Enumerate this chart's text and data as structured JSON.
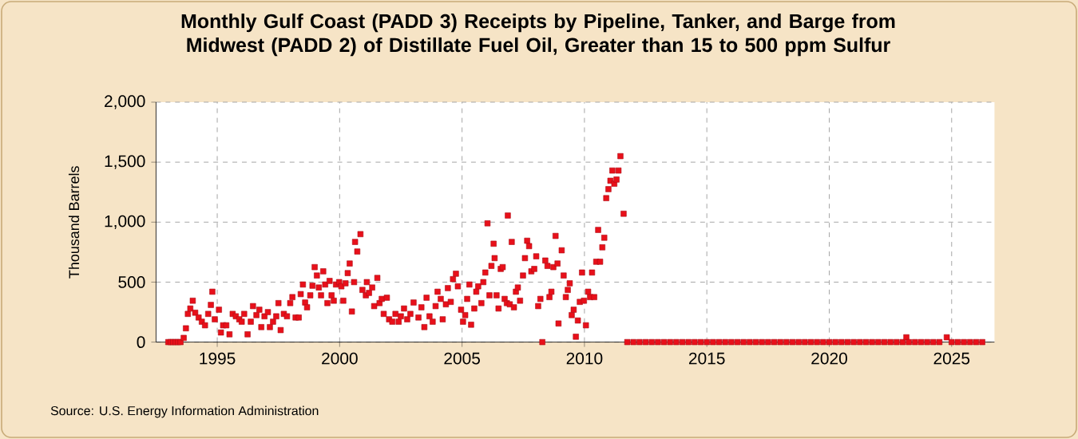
{
  "chart_data": {
    "type": "scatter",
    "title": "Monthly Gulf Coast (PADD 3) Receipts by Pipeline, Tanker, and Barge from Midwest (PADD 2) of Distillate Fuel Oil, Greater than 15 to 500 ppm Sulfur",
    "ylabel": "Thousand Barrels",
    "annotations": [
      "Source: U.S. Energy Information Administration"
    ],
    "xlim": [
      1992.5,
      2026.75
    ],
    "ylim": [
      0,
      2000
    ],
    "xticks": [
      1995,
      2000,
      2005,
      2010,
      2015,
      2020,
      2025
    ],
    "yticks": [
      0,
      500,
      {
        "value": 1000,
        "label": "1,000"
      },
      {
        "value": 1500,
        "label": "1,500"
      },
      {
        "value": 2000,
        "label": "2,000"
      }
    ],
    "grid": true,
    "marker": "square",
    "series": [
      {
        "color": "#e8101a",
        "x": [
          1993.0,
          1993.1,
          1993.2,
          1993.3,
          1993.4,
          1993.5,
          1993.63,
          1993.72,
          1993.8,
          1993.9,
          1994.0,
          1994.1,
          1994.24,
          1994.37,
          1994.5,
          1994.63,
          1994.74,
          1994.8,
          1994.9,
          1995.07,
          1995.15,
          1995.24,
          1995.37,
          1995.5,
          1995.63,
          1995.76,
          1995.9,
          1996.0,
          1996.1,
          1996.24,
          1996.37,
          1996.46,
          1996.6,
          1996.72,
          1996.8,
          1996.93,
          1997.07,
          1997.15,
          1997.28,
          1997.41,
          1997.5,
          1997.59,
          1997.72,
          1997.85,
          1997.98,
          1998.07,
          1998.2,
          1998.33,
          1998.41,
          1998.5,
          1998.59,
          1998.67,
          1998.8,
          1998.89,
          1998.98,
          1999.07,
          1999.15,
          1999.24,
          1999.33,
          1999.41,
          1999.5,
          1999.59,
          1999.67,
          1999.76,
          1999.85,
          1999.98,
          2000.07,
          2000.15,
          2000.24,
          2000.33,
          2000.41,
          2000.5,
          2000.59,
          2000.63,
          2000.72,
          2000.85,
          2000.93,
          2001.07,
          2001.11,
          2001.2,
          2001.33,
          2001.41,
          2001.54,
          2001.63,
          2001.72,
          2001.8,
          2001.93,
          2002.02,
          2002.15,
          2002.28,
          2002.41,
          2002.5,
          2002.63,
          2002.76,
          2002.89,
          2003.02,
          2003.22,
          2003.34,
          2003.46,
          2003.55,
          2003.67,
          2003.8,
          2003.92,
          2004.0,
          2004.13,
          2004.21,
          2004.34,
          2004.42,
          2004.54,
          2004.63,
          2004.75,
          2004.83,
          2004.96,
          2005.04,
          2005.13,
          2005.21,
          2005.3,
          2005.37,
          2005.5,
          2005.58,
          2005.66,
          2005.79,
          2005.87,
          2005.95,
          2006.04,
          2006.12,
          2006.2,
          2006.29,
          2006.33,
          2006.41,
          2006.49,
          2006.58,
          2006.66,
          2006.74,
          2006.83,
          2006.87,
          2006.95,
          2007.03,
          2007.12,
          2007.2,
          2007.28,
          2007.37,
          2007.49,
          2007.57,
          2007.66,
          2007.74,
          2007.83,
          2007.95,
          2008.03,
          2008.11,
          2008.2,
          2008.28,
          2008.4,
          2008.49,
          2008.57,
          2008.65,
          2008.73,
          2008.82,
          2008.9,
          2008.94,
          2009.07,
          2009.15,
          2009.24,
          2009.32,
          2009.4,
          2009.48,
          2009.56,
          2009.65,
          2009.73,
          2009.81,
          2009.9,
          2009.98,
          2010.06,
          2010.15,
          2010.23,
          2010.31,
          2010.4,
          2010.48,
          2010.56,
          2010.64,
          2010.73,
          2010.81,
          2010.89,
          2010.98,
          2011.06,
          2011.14,
          2011.22,
          2011.31,
          2011.39,
          2011.47,
          2011.6,
          2011.75,
          2012.0,
          2012.25,
          2012.5,
          2012.75,
          2013.0,
          2013.25,
          2013.5,
          2013.75,
          2014.0,
          2014.25,
          2014.5,
          2014.75,
          2015.0,
          2015.25,
          2015.5,
          2015.75,
          2016.0,
          2016.25,
          2016.5,
          2016.75,
          2017.0,
          2017.25,
          2017.5,
          2017.75,
          2018.0,
          2018.25,
          2018.5,
          2018.75,
          2019.0,
          2019.25,
          2019.5,
          2019.75,
          2020.0,
          2020.25,
          2020.5,
          2020.75,
          2021.0,
          2021.25,
          2021.5,
          2021.75,
          2022.0,
          2022.25,
          2022.5,
          2022.75,
          2023.0,
          2023.15,
          2023.25,
          2023.5,
          2023.75,
          2024.0,
          2024.25,
          2024.5,
          2024.8,
          2025.0,
          2025.25,
          2025.5,
          2025.75,
          2026.0,
          2026.25
        ],
        "values": [
          0,
          0,
          0,
          0,
          0,
          0,
          35,
          115,
          235,
          280,
          345,
          245,
          205,
          170,
          140,
          235,
          310,
          420,
          190,
          270,
          80,
          140,
          140,
          65,
          235,
          215,
          190,
          170,
          235,
          65,
          170,
          300,
          225,
          270,
          125,
          215,
          250,
          125,
          170,
          215,
          325,
          100,
          235,
          215,
          325,
          375,
          205,
          205,
          400,
          480,
          330,
          290,
          390,
          470,
          625,
          555,
          455,
          390,
          590,
          480,
          325,
          510,
          390,
          345,
          480,
          500,
          465,
          345,
          490,
          575,
          655,
          255,
          500,
          835,
          755,
          900,
          435,
          390,
          500,
          410,
          455,
          300,
          535,
          325,
          360,
          235,
          370,
          190,
          170,
          235,
          170,
          215,
          280,
          190,
          235,
          330,
          205,
          290,
          125,
          370,
          215,
          170,
          300,
          420,
          360,
          190,
          315,
          450,
          335,
          525,
          570,
          465,
          270,
          170,
          225,
          360,
          480,
          145,
          280,
          420,
          465,
          325,
          500,
          580,
          990,
          390,
          635,
          820,
          700,
          390,
          280,
          610,
          625,
          360,
          325,
          1055,
          315,
          835,
          290,
          420,
          455,
          345,
          555,
          700,
          845,
          800,
          590,
          610,
          715,
          300,
          360,
          0,
          680,
          635,
          375,
          420,
          625,
          885,
          655,
          155,
          765,
          555,
          375,
          435,
          490,
          225,
          270,
          45,
          180,
          335,
          580,
          345,
          140,
          420,
          375,
          580,
          375,
          670,
          935,
          670,
          790,
          870,
          1200,
          1275,
          1345,
          1430,
          1320,
          1355,
          1430,
          1550,
          1070,
          0,
          0,
          0,
          0,
          0,
          0,
          0,
          0,
          0,
          0,
          0,
          0,
          0,
          0,
          0,
          0,
          0,
          0,
          0,
          0,
          0,
          0,
          0,
          0,
          0,
          0,
          0,
          0,
          0,
          0,
          0,
          0,
          0,
          0,
          0,
          0,
          0,
          0,
          0,
          0,
          0,
          0,
          0,
          0,
          0,
          0,
          40,
          0,
          0,
          0,
          0,
          0,
          0,
          40,
          0,
          0,
          0,
          0,
          0,
          0
        ]
      }
    ]
  }
}
